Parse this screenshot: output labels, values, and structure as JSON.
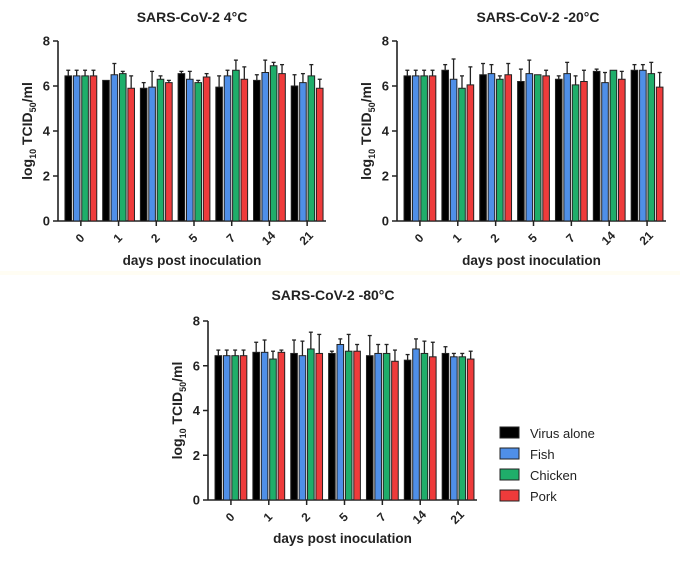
{
  "chart_data": [
    {
      "type": "bar",
      "title": "SARS-CoV-2 4°C",
      "xlabel": "days post inoculation",
      "ylabel": "log10 TCID50/ml",
      "ylabel_parts": {
        "pre": "log",
        "sub1": "10",
        "mid": " TCID",
        "sub2": "50",
        "post": "/ml"
      },
      "ylim": [
        0,
        8
      ],
      "yticks": [
        "0",
        "2",
        "4",
        "6",
        "8"
      ],
      "categories": [
        "0",
        "1",
        "2",
        "5",
        "7",
        "14",
        "21"
      ],
      "grid": false,
      "legend": "none",
      "series": [
        {
          "name": "Virus alone",
          "color": "#000000",
          "values": [
            6.45,
            6.25,
            5.9,
            6.55,
            5.95,
            6.25,
            6.0
          ],
          "errors": [
            0.25,
            0.0,
            0.25,
            0.1,
            0.5,
            0.25,
            0.5
          ]
        },
        {
          "name": "Fish",
          "color": "#4f8fe8",
          "values": [
            6.45,
            6.5,
            5.95,
            6.3,
            6.45,
            6.6,
            6.15
          ],
          "errors": [
            0.25,
            0.5,
            0.7,
            0.35,
            0.25,
            0.55,
            0.4
          ]
        },
        {
          "name": "Chicken",
          "color": "#1fae6a",
          "values": [
            6.45,
            6.55,
            6.3,
            6.15,
            6.7,
            6.9,
            6.45
          ],
          "errors": [
            0.25,
            0.1,
            0.15,
            0.1,
            0.45,
            0.15,
            0.5
          ]
        },
        {
          "name": "Pork",
          "color": "#ee3b3b",
          "values": [
            6.45,
            5.9,
            6.15,
            6.4,
            6.3,
            6.55,
            5.9
          ],
          "errors": [
            0.25,
            0.55,
            0.1,
            0.15,
            0.55,
            0.4,
            0.4
          ]
        }
      ]
    },
    {
      "type": "bar",
      "title": "SARS-CoV-2 -20°C",
      "xlabel": "days post inoculation",
      "ylabel": "log10 TCID50/ml",
      "ylabel_parts": {
        "pre": "log",
        "sub1": "10",
        "mid": " TCID",
        "sub2": "50",
        "post": "/ml"
      },
      "ylim": [
        0,
        8
      ],
      "yticks": [
        "0",
        "2",
        "4",
        "6",
        "8"
      ],
      "categories": [
        "0",
        "1",
        "2",
        "5",
        "7",
        "14",
        "21"
      ],
      "grid": false,
      "legend": "none",
      "series": [
        {
          "name": "Virus alone",
          "color": "#000000",
          "values": [
            6.45,
            6.7,
            6.5,
            6.2,
            6.3,
            6.65,
            6.7
          ],
          "errors": [
            0.25,
            0.25,
            0.5,
            0.55,
            0.15,
            0.1,
            0.25
          ]
        },
        {
          "name": "Fish",
          "color": "#4f8fe8",
          "values": [
            6.45,
            6.3,
            6.55,
            6.55,
            6.55,
            6.15,
            6.7
          ],
          "errors": [
            0.25,
            0.9,
            0.4,
            0.6,
            0.5,
            0.45,
            0.25
          ]
        },
        {
          "name": "Chicken",
          "color": "#1fae6a",
          "values": [
            6.45,
            5.9,
            6.3,
            6.5,
            6.05,
            6.7,
            6.55
          ],
          "errors": [
            0.25,
            0.55,
            0.15,
            0.0,
            0.4,
            0.0,
            0.5
          ]
        },
        {
          "name": "Pork",
          "color": "#ee3b3b",
          "values": [
            6.45,
            6.05,
            6.5,
            6.45,
            6.2,
            6.3,
            5.95
          ],
          "errors": [
            0.25,
            0.8,
            0.5,
            0.25,
            0.5,
            0.35,
            0.65
          ]
        }
      ]
    },
    {
      "type": "bar",
      "title": "SARS-CoV-2 -80°C",
      "xlabel": "days post inoculation",
      "ylabel": "log10 TCID50/ml",
      "ylabel_parts": {
        "pre": "log",
        "sub1": "10",
        "mid": " TCID",
        "sub2": "50",
        "post": "/ml"
      },
      "ylim": [
        0,
        8
      ],
      "yticks": [
        "0",
        "2",
        "4",
        "6",
        "8"
      ],
      "categories": [
        "0",
        "1",
        "2",
        "5",
        "7",
        "14",
        "21"
      ],
      "grid": false,
      "legend": "right",
      "series": [
        {
          "name": "Virus alone",
          "color": "#000000",
          "values": [
            6.45,
            6.6,
            6.55,
            6.55,
            6.45,
            6.25,
            6.55
          ],
          "errors": [
            0.25,
            0.45,
            0.6,
            0.1,
            0.9,
            0.25,
            0.3
          ]
        },
        {
          "name": "Fish",
          "color": "#4f8fe8",
          "values": [
            6.45,
            6.6,
            6.45,
            6.95,
            6.55,
            6.75,
            6.4
          ],
          "errors": [
            0.25,
            0.55,
            0.65,
            0.25,
            0.4,
            0.45,
            0.15
          ]
        },
        {
          "name": "Chicken",
          "color": "#1fae6a",
          "values": [
            6.45,
            6.3,
            6.75,
            6.65,
            6.55,
            6.55,
            6.4
          ],
          "errors": [
            0.25,
            0.35,
            0.75,
            0.75,
            0.4,
            0.55,
            0.15
          ]
        },
        {
          "name": "Pork",
          "color": "#ee3b3b",
          "values": [
            6.45,
            6.6,
            6.55,
            6.65,
            6.2,
            6.4,
            6.3
          ],
          "errors": [
            0.25,
            0.1,
            0.85,
            0.3,
            0.5,
            0.65,
            0.35
          ]
        }
      ]
    }
  ],
  "legend": {
    "items": [
      {
        "label": "Virus alone",
        "color": "#000000"
      },
      {
        "label": "Fish",
        "color": "#4f8fe8"
      },
      {
        "label": "Chicken",
        "color": "#1fae6a"
      },
      {
        "label": "Pork",
        "color": "#ee3b3b"
      }
    ]
  }
}
